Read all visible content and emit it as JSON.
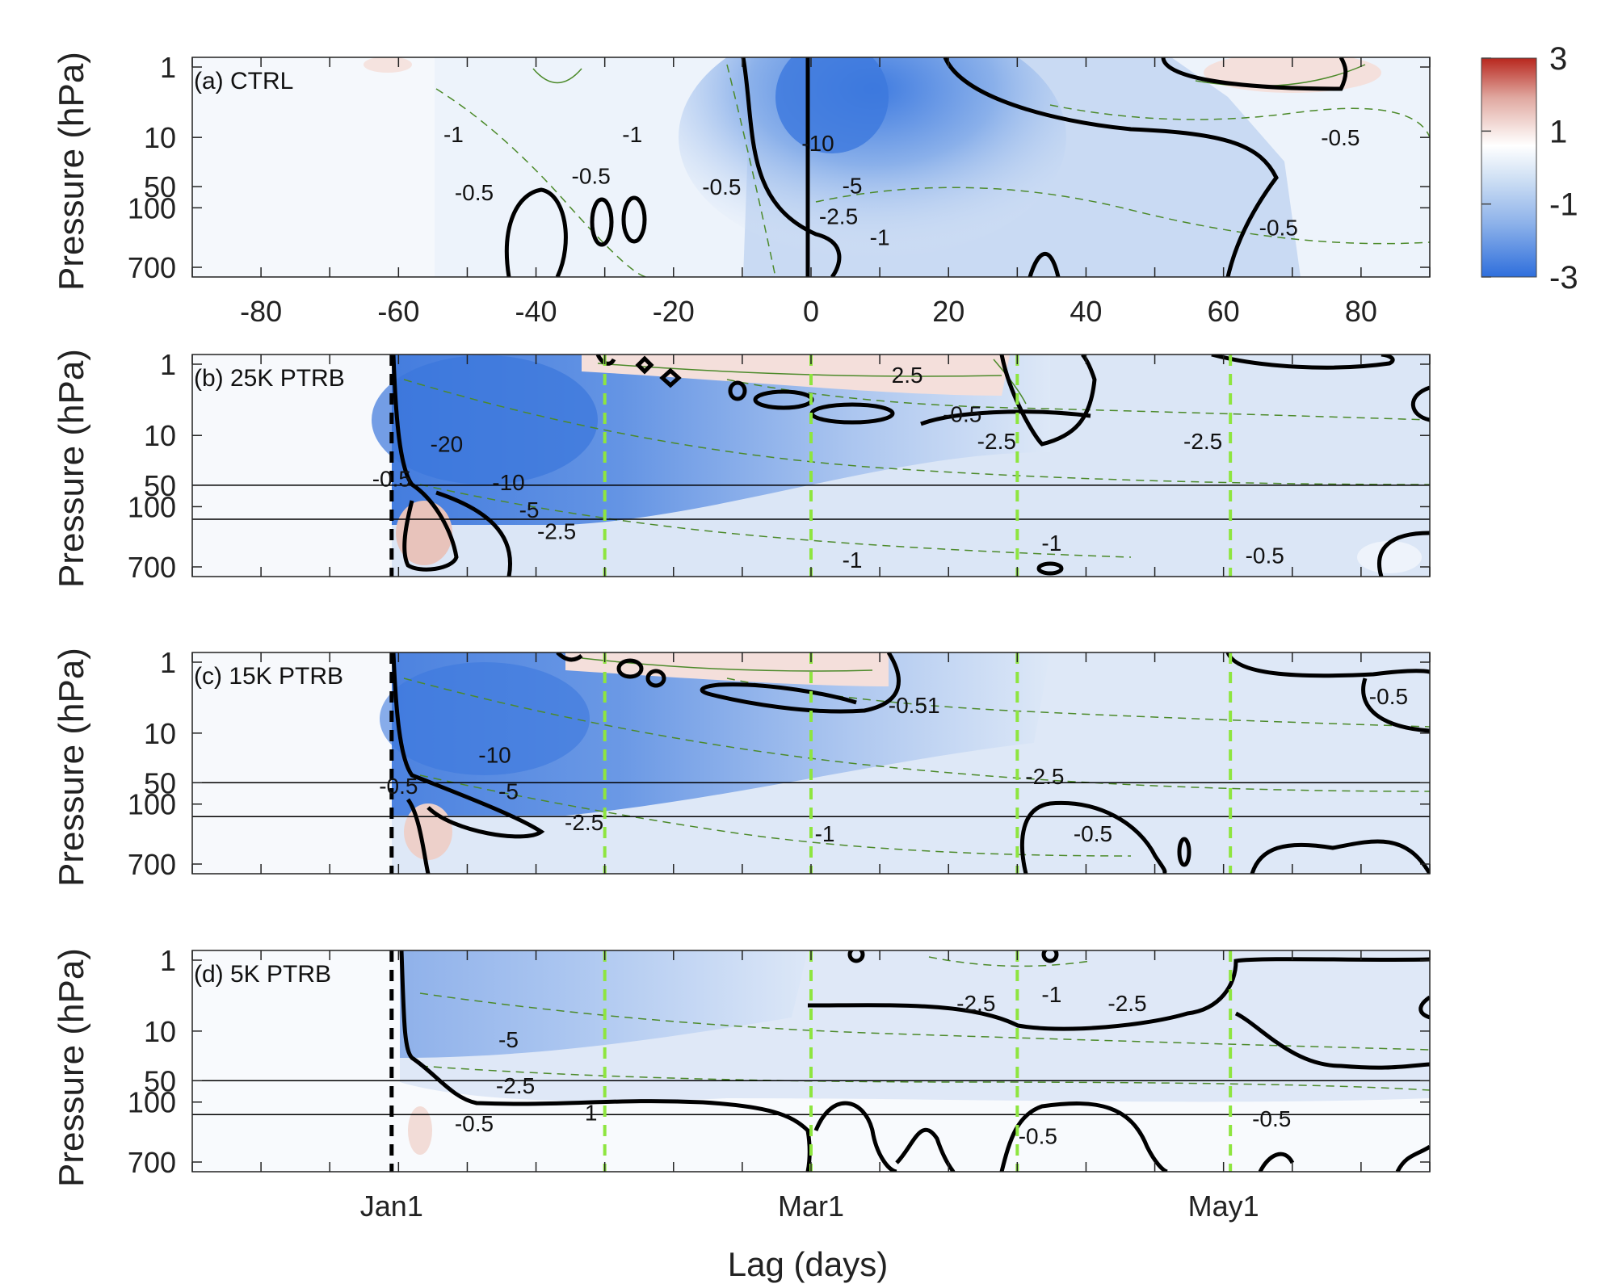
{
  "colors": {
    "shading_low": "#3a78d8",
    "shading_zero": "#ffffff",
    "shading_high": "#c03a2b",
    "contour_zero": "#000000",
    "contour_thin": "#4c8a2a",
    "event_line": "#8ee53f"
  },
  "chart_data": [
    {
      "type": "heatmap",
      "title": "(a) CTRL",
      "xlabel": "",
      "ylabel": "Pressure (hPa)",
      "xlim": [
        -90,
        90
      ],
      "xticks": [
        -80,
        -60,
        -40,
        -20,
        0,
        20,
        40,
        60,
        80
      ],
      "xtick_labels": [
        "-80",
        "-60",
        "-40",
        "-20",
        "0",
        "20",
        "40",
        "60",
        "80"
      ],
      "yscale": "log",
      "yticks": [
        1,
        10,
        50,
        100,
        700
      ],
      "ytick_labels": [
        "1",
        "10",
        "50",
        "100",
        "700"
      ],
      "vertical_lines": [
        {
          "x": 0,
          "style": "solid-black"
        }
      ],
      "contour_labels": [
        {
          "text": "-1",
          "x": -52,
          "p": 9
        },
        {
          "text": "-0.5",
          "x": -49,
          "p": 60
        },
        {
          "text": "-0.5",
          "x": -32,
          "p": 35
        },
        {
          "text": "-1",
          "x": -26,
          "p": 9
        },
        {
          "text": "-0.5",
          "x": -13,
          "p": 50
        },
        {
          "text": "-10",
          "x": 1,
          "p": 12
        },
        {
          "text": "-5",
          "x": 6,
          "p": 48
        },
        {
          "text": "-2.5",
          "x": 4,
          "p": 130
        },
        {
          "text": "-1",
          "x": 10,
          "p": 260
        },
        {
          "text": "-0.5",
          "x": 77,
          "p": 10
        },
        {
          "text": "-0.5",
          "x": 68,
          "p": 190
        }
      ]
    },
    {
      "type": "heatmap",
      "title": "(b) 25K PTRB",
      "xlabel": "",
      "ylabel": "Pressure (hPa)",
      "xlim": [
        -90,
        90
      ],
      "yscale": "log",
      "yticks": [
        1,
        10,
        50,
        100,
        700
      ],
      "ytick_labels": [
        "1",
        "10",
        "50",
        "100",
        "700"
      ],
      "horizontal_lines": [
        50,
        150
      ],
      "vertical_lines": [
        {
          "x": -61,
          "style": "dashed-black"
        },
        {
          "x": -30,
          "style": "dashed-green"
        },
        {
          "x": 0,
          "style": "dashed-green"
        },
        {
          "x": 30,
          "style": "dashed-green"
        },
        {
          "x": 61,
          "style": "dashed-green"
        }
      ],
      "contour_labels": [
        {
          "text": "-20",
          "x": -53,
          "p": 13
        },
        {
          "text": "-0.5",
          "x": -61,
          "p": 40
        },
        {
          "text": "-10",
          "x": -44,
          "p": 45
        },
        {
          "text": "-5",
          "x": -41,
          "p": 110
        },
        {
          "text": "-2.5",
          "x": -37,
          "p": 220
        },
        {
          "text": "2.5",
          "x": 14,
          "p": 1.4
        },
        {
          "text": "-0.5",
          "x": 22,
          "p": 5
        },
        {
          "text": "-2.5",
          "x": 27,
          "p": 12
        },
        {
          "text": "-2.5",
          "x": 57,
          "p": 12
        },
        {
          "text": "-1",
          "x": 35,
          "p": 320
        },
        {
          "text": "-1",
          "x": 6,
          "p": 550
        },
        {
          "text": "-0.5",
          "x": 66,
          "p": 480
        }
      ]
    },
    {
      "type": "heatmap",
      "title": "(c) 15K PTRB",
      "xlabel": "",
      "ylabel": "Pressure (hPa)",
      "xlim": [
        -90,
        90
      ],
      "yscale": "log",
      "yticks": [
        1,
        10,
        50,
        100,
        700
      ],
      "ytick_labels": [
        "1",
        "10",
        "50",
        "100",
        "700"
      ],
      "horizontal_lines": [
        50,
        150
      ],
      "vertical_lines": [
        {
          "x": -61,
          "style": "dashed-black"
        },
        {
          "x": -30,
          "style": "dashed-green"
        },
        {
          "x": 0,
          "style": "dashed-green"
        },
        {
          "x": 30,
          "style": "dashed-green"
        },
        {
          "x": 61,
          "style": "dashed-green"
        }
      ],
      "contour_labels": [
        {
          "text": "-10",
          "x": -46,
          "p": 20
        },
        {
          "text": "-0.5",
          "x": -60,
          "p": 55
        },
        {
          "text": "-5",
          "x": -44,
          "p": 65
        },
        {
          "text": "-2.5",
          "x": -33,
          "p": 180
        },
        {
          "text": "-0.51",
          "x": 15,
          "p": 4
        },
        {
          "text": "-2.5",
          "x": 34,
          "p": 40
        },
        {
          "text": "-1",
          "x": 2,
          "p": 260
        },
        {
          "text": "-0.5",
          "x": 41,
          "p": 260
        },
        {
          "text": "-0.5",
          "x": 84,
          "p": 3
        }
      ]
    },
    {
      "type": "heatmap",
      "title": "(d) 5K PTRB",
      "xlabel": "Lag (days)",
      "ylabel": "Pressure (hPa)",
      "xlim": [
        -90,
        90
      ],
      "xticks": [
        -61,
        0,
        60
      ],
      "xtick_labels": [
        "Jan1",
        "Mar1",
        "May1"
      ],
      "yscale": "log",
      "yticks": [
        1,
        10,
        50,
        100,
        700
      ],
      "ytick_labels": [
        "1",
        "10",
        "50",
        "100",
        "700"
      ],
      "horizontal_lines": [
        50,
        150
      ],
      "vertical_lines": [
        {
          "x": -61,
          "style": "dashed-black"
        },
        {
          "x": -30,
          "style": "dashed-green"
        },
        {
          "x": 0,
          "style": "dashed-green"
        },
        {
          "x": 30,
          "style": "dashed-green"
        },
        {
          "x": 61,
          "style": "dashed-green"
        }
      ],
      "contour_labels": [
        {
          "text": "-5",
          "x": -44,
          "p": 13
        },
        {
          "text": "-2.5",
          "x": -43,
          "p": 58
        },
        {
          "text": "-0.5",
          "x": -49,
          "p": 200
        },
        {
          "text": "1",
          "x": -32,
          "p": 140
        },
        {
          "text": "-2.5",
          "x": 24,
          "p": 4
        },
        {
          "text": "-1",
          "x": 35,
          "p": 3
        },
        {
          "text": "-2.5",
          "x": 46,
          "p": 4
        },
        {
          "text": "-0.5",
          "x": 33,
          "p": 300
        },
        {
          "text": "-0.5",
          "x": 67,
          "p": 170
        }
      ]
    }
  ],
  "colorbar": {
    "ticks": [
      3,
      1,
      -1,
      -3
    ],
    "tick_labels": [
      "3",
      "1",
      "-1",
      "-3"
    ]
  }
}
